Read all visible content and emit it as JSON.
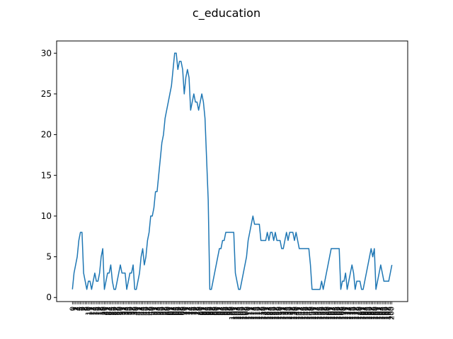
{
  "chart_data": {
    "type": "line",
    "title": "c_education",
    "xlabel": "",
    "ylabel": "",
    "ylim": [
      -0.5,
      31.5
    ],
    "yticks": [
      0,
      5,
      10,
      15,
      20,
      25,
      30
    ],
    "grid": false,
    "line_color": "#1f77b4",
    "series": [
      {
        "values": [
          1,
          3,
          4,
          5,
          7,
          8,
          8,
          3,
          2,
          1,
          2,
          2,
          1,
          2,
          3,
          2,
          2,
          3,
          5,
          6,
          1,
          2,
          3,
          3,
          4,
          2,
          1,
          1,
          2,
          3,
          4,
          3,
          3,
          3,
          1,
          2,
          3,
          3,
          4,
          1,
          1,
          2,
          3,
          5,
          6,
          4,
          5,
          7,
          8,
          10,
          10,
          11,
          13,
          13,
          15,
          17,
          19,
          20,
          22,
          23,
          24,
          25,
          26,
          28,
          30,
          30,
          28,
          29,
          29,
          28,
          25,
          27,
          28,
          27,
          23,
          24,
          25,
          24,
          24,
          23,
          24,
          25,
          24,
          22,
          17,
          12,
          1,
          1,
          2,
          3,
          4,
          5,
          6,
          6,
          7,
          7,
          8,
          8,
          8,
          8,
          8,
          8,
          3,
          2,
          1,
          1,
          2,
          3,
          4,
          5,
          7,
          8,
          9,
          10,
          9,
          9,
          9,
          9,
          7,
          7,
          7,
          7,
          8,
          7,
          8,
          8,
          7,
          8,
          7,
          7,
          7,
          6,
          6,
          7,
          8,
          7,
          8,
          8,
          8,
          7,
          8,
          7,
          6,
          6,
          6,
          6,
          6,
          6,
          6,
          4,
          1,
          1,
          1,
          1,
          1,
          1,
          2,
          1,
          2,
          3,
          4,
          5,
          6,
          6,
          6,
          6,
          6,
          6,
          1,
          2,
          2,
          3,
          1,
          2,
          3,
          4,
          3,
          1,
          2,
          2,
          2,
          1,
          1,
          2,
          3,
          4,
          5,
          6,
          5,
          6,
          1,
          2,
          3,
          4,
          3,
          2,
          2,
          2,
          2,
          3,
          4
        ]
      }
    ]
  }
}
